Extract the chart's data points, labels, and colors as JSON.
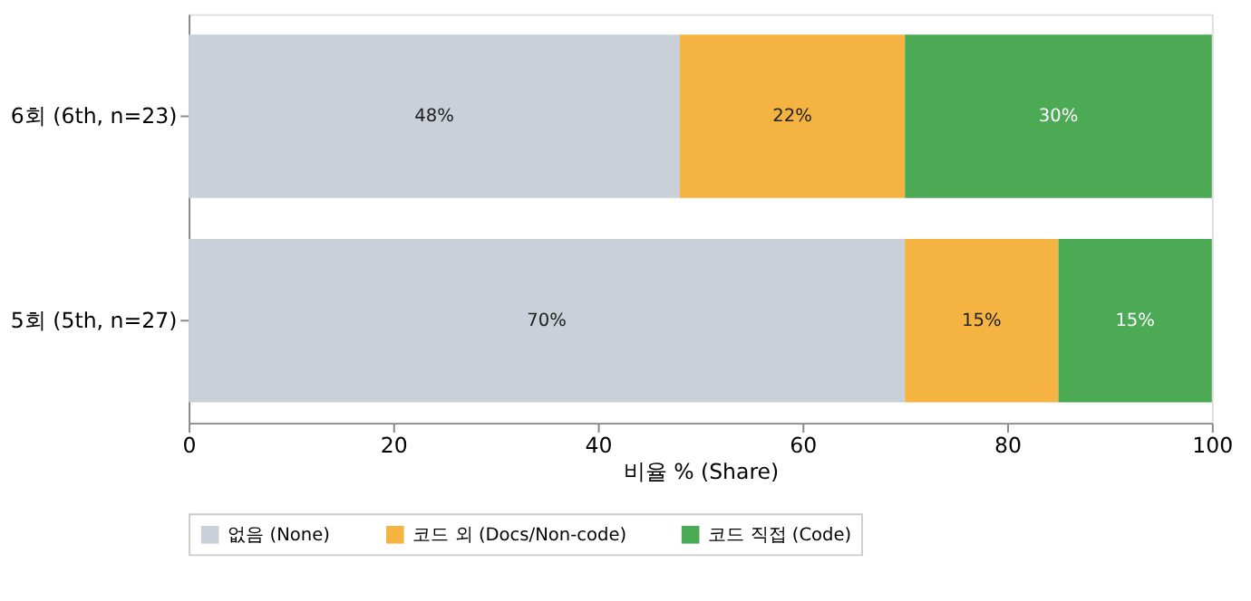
{
  "chart_data": {
    "type": "bar",
    "orientation": "horizontal",
    "stacked": true,
    "xlabel": "비율 % (Share)",
    "categories": [
      "6회 (6th, n=23)",
      "5회 (5th, n=27)"
    ],
    "series": [
      {
        "name": "없음 (None)",
        "color": "#c9d0d9",
        "values": [
          48,
          70
        ],
        "value_labels": [
          "48%",
          "70%"
        ]
      },
      {
        "name": "코드 외 (Docs/Non-code)",
        "color": "#f5b342",
        "values": [
          22,
          15
        ],
        "value_labels": [
          "22%",
          "15%"
        ]
      },
      {
        "name": "코드 직접 (Code)",
        "color": "#4caa55",
        "values": [
          30,
          15
        ],
        "value_labels": [
          "30%",
          "15%"
        ]
      }
    ],
    "xlim": [
      0,
      100
    ],
    "xticks": [
      0,
      20,
      40,
      60,
      80,
      100
    ],
    "grid": false,
    "legend": "bottom"
  }
}
